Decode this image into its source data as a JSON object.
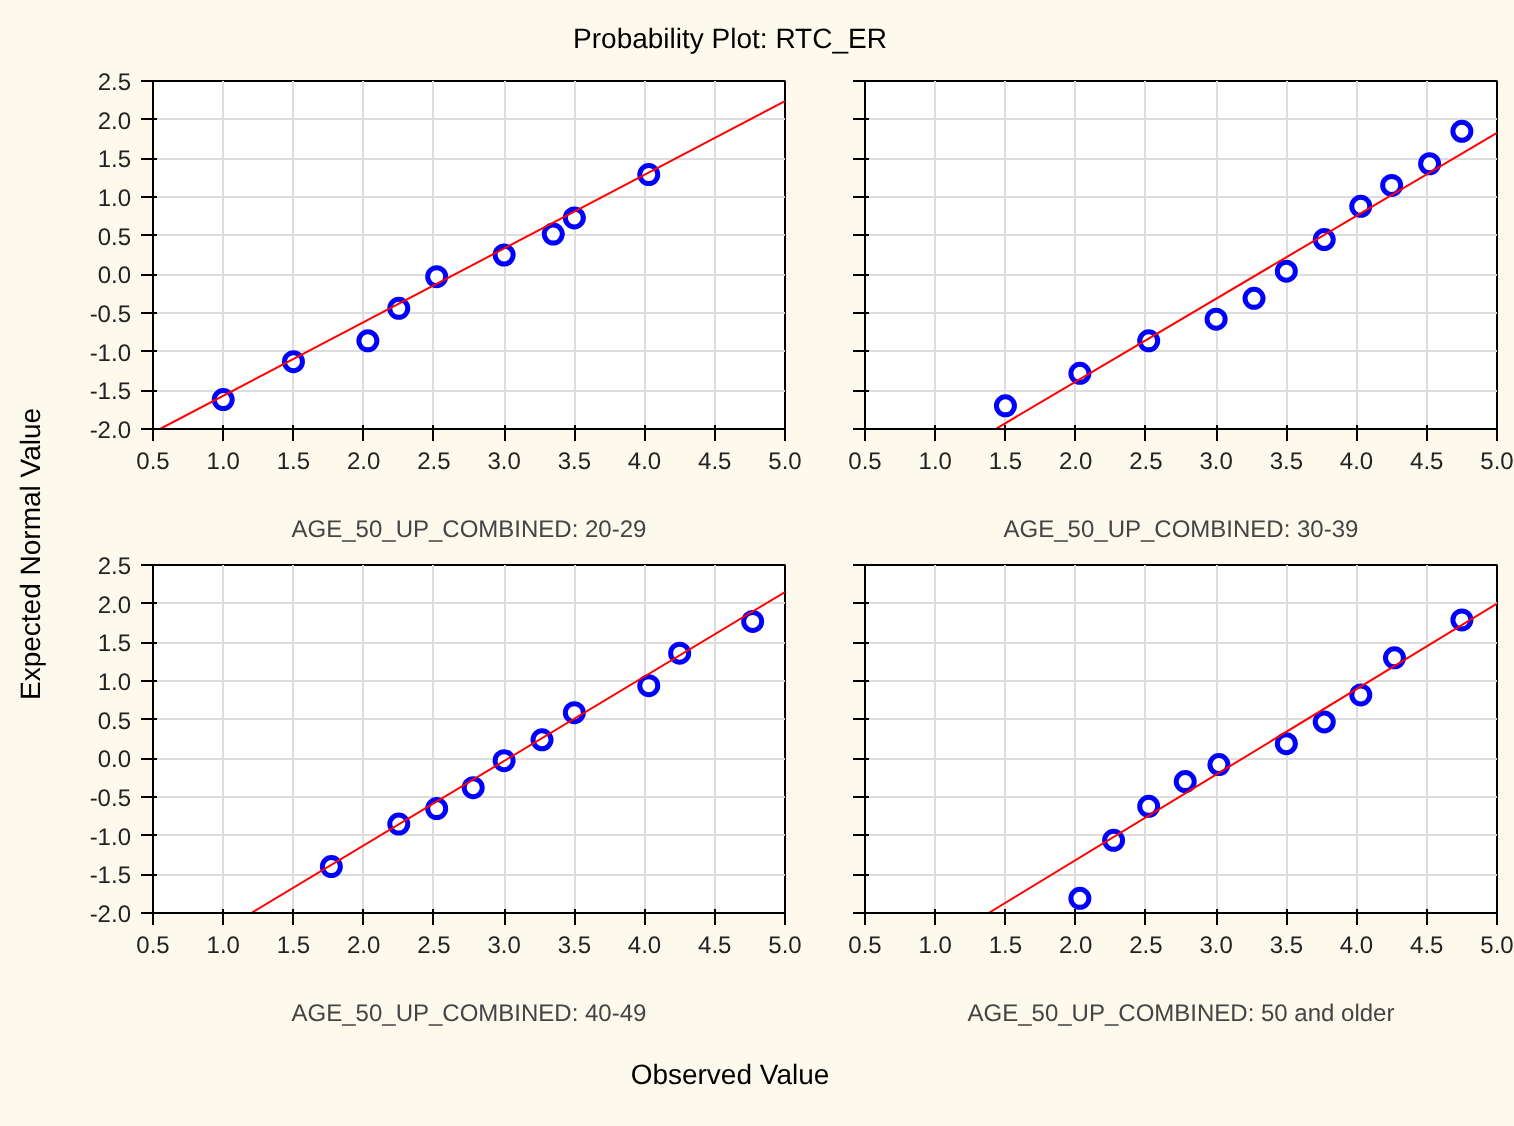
{
  "chart_data": [
    {
      "type": "scatter",
      "title": "Probability Plot: RTC_ER",
      "ylabel": "Expected Normal Value",
      "xlabel": "Observed Value",
      "subtitle": "AGE_50_UP_COMBINED: 20-29",
      "xlim": [
        0.5,
        5.0
      ],
      "ylim": [
        -2.0,
        2.5
      ],
      "xticks": [
        0.5,
        {
          "value": 1,
          "label": "1.0"
        },
        1.5,
        {
          "value": 2,
          "label": "2.0"
        },
        2.5,
        {
          "value": 3,
          "label": "3.0"
        },
        3.5,
        {
          "value": 4,
          "label": "4.0"
        },
        4.5,
        {
          "value": 5,
          "label": "5.0"
        }
      ],
      "yticks": [
        {
          "value": -2,
          "label": "-2.0"
        },
        -1.5,
        {
          "value": -1,
          "label": "-1.0"
        },
        -0.5,
        {
          "value": 0,
          "label": "0.0"
        },
        0.5,
        {
          "value": 1,
          "label": "1.0"
        },
        1.5,
        {
          "value": 2,
          "label": "2.0"
        },
        2.5
      ],
      "grid": true,
      "series": [
        {
          "marker": "circle",
          "color": "#0000ff",
          "x": [
            1.0,
            1.5,
            2.03,
            2.25,
            2.52,
            3.0,
            3.35,
            3.5,
            4.03
          ],
          "values": [
            -1.62,
            -1.13,
            -0.86,
            -0.44,
            -0.03,
            0.25,
            0.52,
            0.73,
            1.29
          ]
        },
        {
          "type": "line",
          "color": "#ff0000",
          "x": [
            0.55,
            5.0
          ],
          "values": [
            -2.0,
            2.24
          ]
        }
      ]
    },
    {
      "type": "scatter",
      "subtitle": "AGE_50_UP_COMBINED: 30-39",
      "tick_labels": "x",
      "xlim": [
        0.5,
        5.0
      ],
      "ylim": [
        -2.0,
        2.5
      ],
      "xticks": [
        0.5,
        {
          "value": 1,
          "label": "1.0"
        },
        1.5,
        {
          "value": 2,
          "label": "2.0"
        },
        2.5,
        {
          "value": 3,
          "label": "3.0"
        },
        3.5,
        {
          "value": 4,
          "label": "4.0"
        },
        4.5,
        {
          "value": 5,
          "label": "5.0"
        }
      ],
      "yticks": [
        {
          "value": -2,
          "label": null
        },
        {
          "value": -1.5,
          "label": null
        },
        {
          "value": -1,
          "label": null
        },
        {
          "value": -0.5,
          "label": null
        },
        {
          "value": 0,
          "label": null
        },
        {
          "value": 0.5,
          "label": null
        },
        {
          "value": 1,
          "label": null
        },
        {
          "value": 1.5,
          "label": null
        },
        {
          "value": 2,
          "label": null
        },
        {
          "value": 2.5,
          "label": null
        }
      ],
      "grid": true,
      "series": [
        {
          "marker": "circle",
          "color": "#0000ff",
          "x": [
            1.5,
            2.03,
            2.52,
            3.0,
            3.27,
            3.5,
            3.77,
            4.03,
            4.25,
            4.52,
            4.75
          ],
          "values": [
            -1.7,
            -1.28,
            -0.86,
            -0.58,
            -0.31,
            0.04,
            0.45,
            0.88,
            1.15,
            1.43,
            1.85
          ]
        },
        {
          "type": "line",
          "color": "#ff0000",
          "x": [
            1.43,
            5.0
          ],
          "values": [
            -2.0,
            1.83
          ]
        }
      ]
    },
    {
      "type": "scatter",
      "subtitle": "AGE_50_UP_COMBINED: 40-49",
      "xlim": [
        0.5,
        5.0
      ],
      "ylim": [
        -2.0,
        2.5
      ],
      "xticks": [
        0.5,
        {
          "value": 1,
          "label": "1.0"
        },
        1.5,
        {
          "value": 2,
          "label": "2.0"
        },
        2.5,
        {
          "value": 3,
          "label": "3.0"
        },
        3.5,
        {
          "value": 4,
          "label": "4.0"
        },
        4.5,
        {
          "value": 5,
          "label": "5.0"
        }
      ],
      "yticks": [
        {
          "value": -2,
          "label": "-2.0"
        },
        -1.5,
        {
          "value": -1,
          "label": "-1.0"
        },
        -0.5,
        {
          "value": 0,
          "label": "0.0"
        },
        0.5,
        {
          "value": 1,
          "label": "1.0"
        },
        1.5,
        {
          "value": 2,
          "label": "2.0"
        },
        2.5
      ],
      "grid": true,
      "series": [
        {
          "marker": "circle",
          "color": "#0000ff",
          "x": [
            1.77,
            2.25,
            2.52,
            2.78,
            3.0,
            3.27,
            3.5,
            4.03,
            4.25,
            4.77
          ],
          "values": [
            -1.4,
            -0.85,
            -0.65,
            -0.38,
            -0.03,
            0.24,
            0.59,
            0.94,
            1.36,
            1.77
          ]
        },
        {
          "type": "line",
          "color": "#ff0000",
          "x": [
            1.2,
            5.0
          ],
          "values": [
            -2.0,
            2.15
          ]
        }
      ]
    },
    {
      "type": "scatter",
      "subtitle": "AGE_50_UP_COMBINED: 50 and older",
      "tick_labels": "x",
      "xlim": [
        0.5,
        5.0
      ],
      "ylim": [
        -2.0,
        2.5
      ],
      "xticks": [
        0.5,
        {
          "value": 1,
          "label": "1.0"
        },
        1.5,
        {
          "value": 2,
          "label": "2.0"
        },
        2.5,
        {
          "value": 3,
          "label": "3.0"
        },
        3.5,
        {
          "value": 4,
          "label": "4.0"
        },
        4.5,
        {
          "value": 5,
          "label": "5.0"
        }
      ],
      "yticks": [
        {
          "value": -2,
          "label": null
        },
        {
          "value": -1.5,
          "label": null
        },
        {
          "value": -1,
          "label": null
        },
        {
          "value": -0.5,
          "label": null
        },
        {
          "value": 0,
          "label": null
        },
        {
          "value": 0.5,
          "label": null
        },
        {
          "value": 1,
          "label": null
        },
        {
          "value": 1.5,
          "label": null
        },
        {
          "value": 2,
          "label": null
        },
        {
          "value": 2.5,
          "label": null
        }
      ],
      "grid": true,
      "series": [
        {
          "marker": "circle",
          "color": "#0000ff",
          "x": [
            2.03,
            2.27,
            2.52,
            2.78,
            3.02,
            3.5,
            3.77,
            4.03,
            4.27,
            4.75
          ],
          "values": [
            -1.81,
            -1.06,
            -0.62,
            -0.3,
            -0.08,
            0.19,
            0.47,
            0.82,
            1.3,
            1.79
          ]
        },
        {
          "type": "line",
          "color": "#ff0000",
          "x": [
            1.38,
            5.0
          ],
          "values": [
            -2.0,
            2.0
          ]
        }
      ]
    }
  ]
}
